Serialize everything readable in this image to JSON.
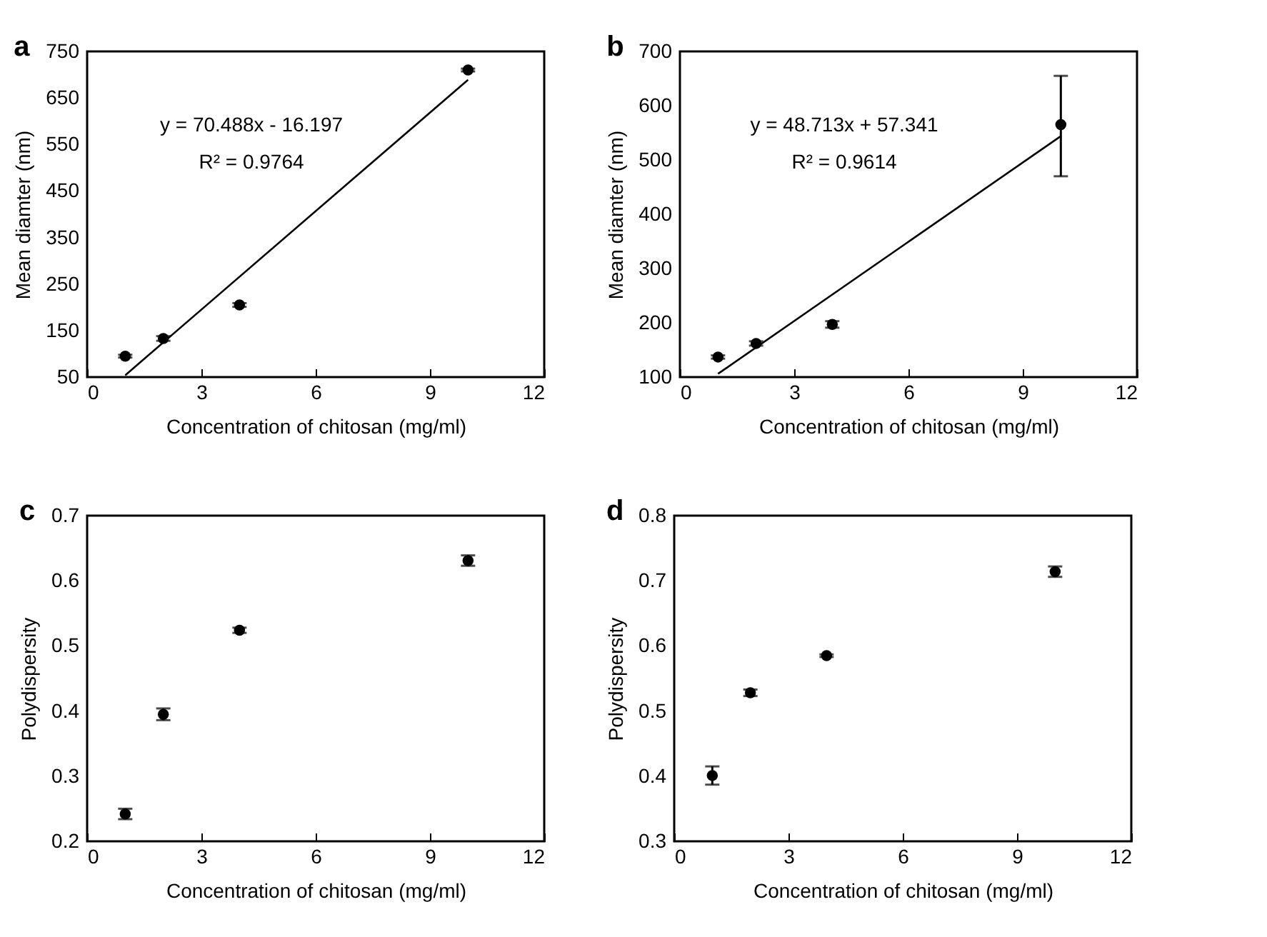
{
  "chart_data": [
    {
      "type": "scatter",
      "title": "a",
      "xlabel": "Concentration of chitosan (mg/ml)",
      "ylabel": "Mean diamter (nm)",
      "xlim": [
        0,
        12
      ],
      "xticks": [
        0,
        3,
        6,
        9,
        12
      ],
      "ylim": [
        50,
        750
      ],
      "yticks": [
        50,
        150,
        250,
        350,
        450,
        550,
        650,
        750
      ],
      "annotations": [
        "y = 70.488x - 16.197",
        "R² = 0.9764"
      ],
      "series": [
        {
          "color": "#000000",
          "marker": "circle",
          "x": [
            1,
            2,
            4,
            10
          ],
          "values": [
            95,
            133,
            205,
            710
          ],
          "errors": [
            3,
            5,
            4,
            3
          ]
        },
        {
          "type": "line",
          "color": "#000000",
          "x": [
            1,
            10
          ],
          "values": [
            54,
            689
          ]
        }
      ]
    },
    {
      "type": "scatter",
      "title": "b",
      "xlabel": "Concentration of chitosan (mg/ml)",
      "ylabel": "Mean diamter (nm)",
      "xlim": [
        0,
        12
      ],
      "xticks": [
        0,
        3,
        6,
        9,
        12
      ],
      "ylim": [
        100,
        700
      ],
      "yticks": [
        100,
        200,
        300,
        400,
        500,
        600,
        700
      ],
      "annotations": [
        "y = 48.713x + 57.341",
        "R² = 0.9614"
      ],
      "series": [
        {
          "color": "#000000",
          "marker": "circle",
          "x": [
            1,
            2,
            4,
            10
          ],
          "values": [
            137,
            162,
            197,
            565
          ],
          "errors": [
            3,
            4,
            6,
            [
              470,
              655
            ]
          ]
        },
        {
          "type": "line",
          "color": "#000000",
          "x": [
            1,
            10
          ],
          "values": [
            106,
            544
          ]
        }
      ]
    },
    {
      "type": "scatter",
      "title": "c",
      "xlabel": "Concentration of chitosan (mg/ml)",
      "ylabel": "Polydispersity",
      "xlim": [
        0,
        12
      ],
      "xticks": [
        0,
        3,
        6,
        9,
        12
      ],
      "ylim": [
        0.2,
        0.7
      ],
      "yticks": [
        0.2,
        0.3,
        0.4,
        0.5,
        0.6,
        0.7
      ],
      "marker": "circle",
      "series": [
        {
          "color": "#000000",
          "x": [
            1,
            2,
            4,
            10
          ],
          "values": [
            0.242,
            0.395,
            0.524,
            0.631
          ],
          "errors": [
            0.008,
            0.009,
            0.004,
            0.008
          ]
        }
      ]
    },
    {
      "type": "scatter",
      "title": "d",
      "xlabel": "Concentration of chitosan (mg/ml)",
      "ylabel": "Polydispersity",
      "xlim": [
        0,
        12
      ],
      "xticks": [
        0,
        3,
        6,
        9,
        12
      ],
      "ylim": [
        0.3,
        0.8
      ],
      "yticks": [
        0.3,
        0.4,
        0.5,
        0.6,
        0.7,
        0.8
      ],
      "marker": "circle",
      "series": [
        {
          "color": "#000000",
          "x": [
            1,
            2,
            4,
            10
          ],
          "values": [
            0.401,
            0.528,
            0.585,
            0.714
          ],
          "errors": [
            0.014,
            0.005,
            0.002,
            0.008
          ]
        }
      ]
    }
  ]
}
